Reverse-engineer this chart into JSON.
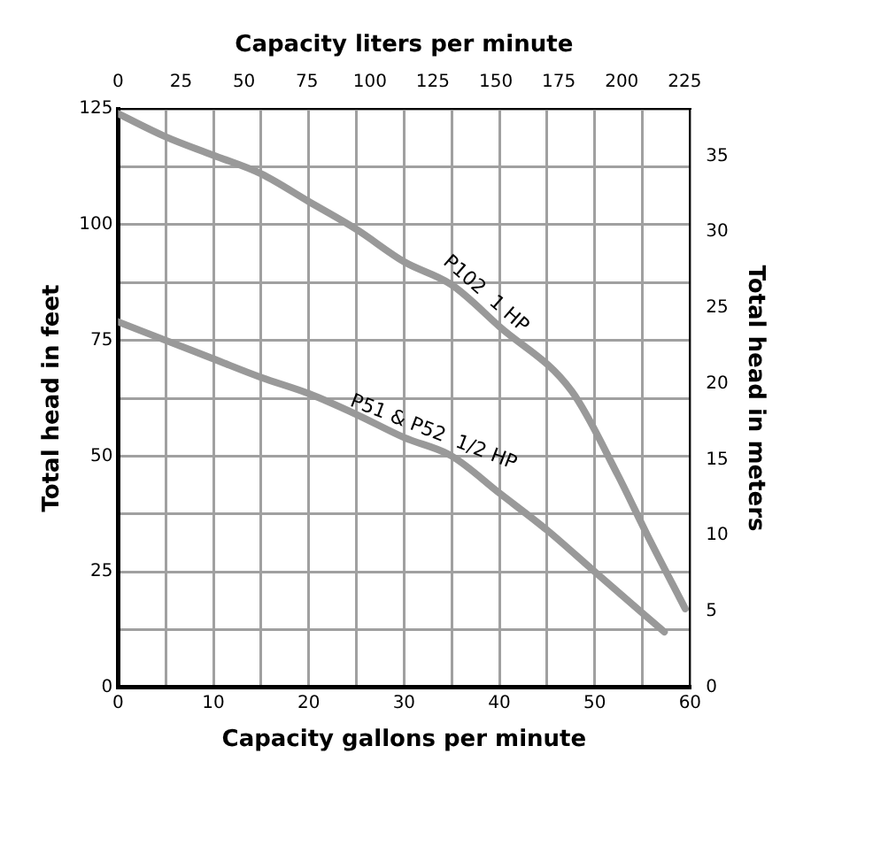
{
  "chart_data": {
    "type": "line",
    "xlabel": "Capacity gallons per minute",
    "x2label": "Capacity liters per minute",
    "ylabel": "Total head in feet",
    "y2label": "Total head in meters",
    "xlim": [
      0,
      60
    ],
    "xticks": [
      0,
      {
        "value": 5,
        "label": null
      },
      10,
      {
        "value": 15,
        "label": null
      },
      20,
      {
        "value": 25,
        "label": null
      },
      30,
      {
        "value": 35,
        "label": null
      },
      40,
      {
        "value": 45,
        "label": null
      },
      50,
      {
        "value": 55,
        "label": null
      },
      60
    ],
    "x2lim": [
      0,
      227.1
    ],
    "x2ticks": [
      0,
      25,
      50,
      75,
      100,
      125,
      150,
      175,
      200,
      225
    ],
    "ylim": [
      0,
      125
    ],
    "yticks": [
      0,
      {
        "value": 12.5,
        "label": null
      },
      25,
      {
        "value": 37.5,
        "label": null
      },
      50,
      {
        "value": 62.5,
        "label": null
      },
      75,
      {
        "value": 87.5,
        "label": null
      },
      100,
      {
        "value": 112.5,
        "label": null
      },
      125
    ],
    "y2lim": [
      0,
      38.1
    ],
    "y2ticks": [
      0,
      5,
      10,
      15,
      20,
      25,
      30,
      35
    ],
    "grid": true,
    "legend": false,
    "series": [
      {
        "name": "P102  1 HP",
        "color": "#999999",
        "x": [
          0,
          5,
          10,
          15,
          20,
          25,
          30,
          35,
          40,
          47.6,
          52.4,
          55.5,
          59.5
        ],
        "values": [
          124,
          119,
          115,
          111,
          105,
          99,
          92,
          87,
          78,
          64,
          46,
          33,
          17
        ]
      },
      {
        "name": "P51 & P52  1/2 HP",
        "color": "#999999",
        "x": [
          0,
          5,
          10,
          15,
          20,
          25,
          30,
          35,
          40,
          45,
          50,
          57.3
        ],
        "values": [
          79,
          75,
          71,
          67,
          63.5,
          59,
          54,
          50,
          42,
          34,
          25,
          12
        ]
      }
    ]
  }
}
